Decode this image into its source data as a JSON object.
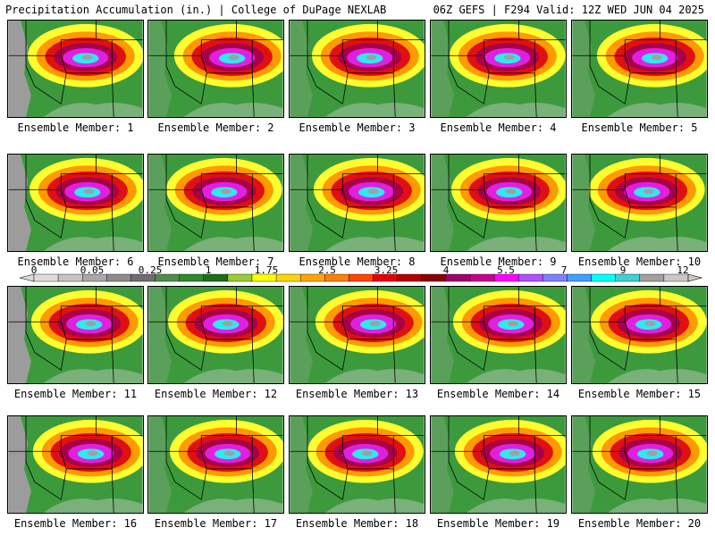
{
  "header": {
    "title": "Precipitation Accumulation (in.) | College of DuPage NEXLAB",
    "run_info": "06Z GEFS | F294 Valid: 12Z WED JUN 04 2025"
  },
  "panels": [
    {
      "label": "Ensemble Member: 1"
    },
    {
      "label": "Ensemble Member: 2"
    },
    {
      "label": "Ensemble Member: 3"
    },
    {
      "label": "Ensemble Member: 4"
    },
    {
      "label": "Ensemble Member: 5"
    },
    {
      "label": "Ensemble Member: 6"
    },
    {
      "label": "Ensemble Member: 7"
    },
    {
      "label": "Ensemble Member: 8"
    },
    {
      "label": "Ensemble Member: 9"
    },
    {
      "label": "Ensemble Member: 10"
    },
    {
      "label": "Ensemble Member: 11"
    },
    {
      "label": "Ensemble Member: 12"
    },
    {
      "label": "Ensemble Member: 13"
    },
    {
      "label": "Ensemble Member: 14"
    },
    {
      "label": "Ensemble Member: 15"
    },
    {
      "label": "Ensemble Member: 16"
    },
    {
      "label": "Ensemble Member: 17"
    },
    {
      "label": "Ensemble Member: 18"
    },
    {
      "label": "Ensemble Member: 19"
    },
    {
      "label": "Ensemble Member: 20"
    }
  ],
  "colorbar": {
    "labels": [
      "0",
      "0.05",
      "0.25",
      "1",
      "1.75",
      "2.5",
      "3.25",
      "4",
      "5.5",
      "7",
      "9",
      "12"
    ],
    "colors": [
      "#dcdcdc",
      "#c4c4c4",
      "#a8a8a8",
      "#8c8c8c",
      "#6e6e6e",
      "#4e8c4e",
      "#2e8b2e",
      "#1c6e1c",
      "#9acd32",
      "#ffff00",
      "#ffd700",
      "#ffa500",
      "#ff7f00",
      "#ff4500",
      "#e60000",
      "#b20000",
      "#8b0000",
      "#a0006e",
      "#c8008c",
      "#ff00ff",
      "#b050ff",
      "#8080ff",
      "#40a0ff",
      "#00ffff",
      "#40d0d0",
      "#a0a0a0",
      "#c8c8c8"
    ]
  }
}
